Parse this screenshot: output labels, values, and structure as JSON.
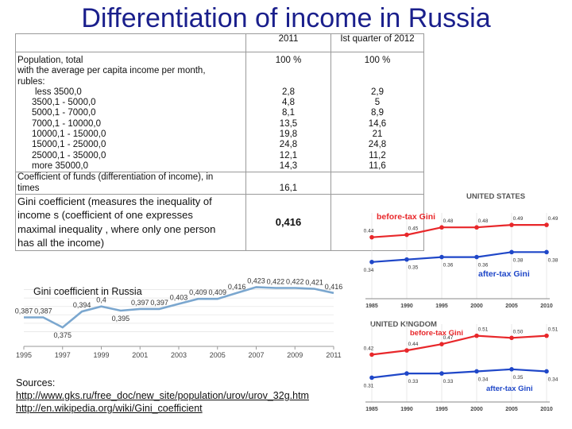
{
  "title": "Differentiation of  income in Russia",
  "table": {
    "col_2011": "2011",
    "col_2012": "Ist quarter of  2012",
    "population_label": "Population,  total",
    "population_2011": "100 %",
    "population_2012": "100 %",
    "subtitle_line1": " with the average per capita income per month,",
    "subtitle_line2": "rubles:",
    "brackets": [
      {
        "label": "less 3500,0",
        "v2011": "2,8",
        "v2012": "2,9"
      },
      {
        "label": "3500,1 - 5000,0",
        "v2011": "4,8",
        "v2012": "5"
      },
      {
        "label": "5000,1 - 7000,0",
        "v2011": "8,1",
        "v2012": "8,9"
      },
      {
        "label": "7000,1 - 10000,0",
        "v2011": "13,5",
        "v2012": "14,6"
      },
      {
        "label": "10000,1 - 15000,0",
        "v2011": "19,8",
        "v2012": "21"
      },
      {
        "label": "15000,1 - 25000,0",
        "v2011": "24,8",
        "v2012": "24,8"
      },
      {
        "label": "25000,1 - 35000,0",
        "v2011": "12,1",
        "v2012": "11,2"
      },
      {
        "label": "more 35000,0",
        "v2011": "14,3",
        "v2012": "11,6"
      }
    ],
    "coef_label_line1": "Coefficient of funds (differentiation of  income), in",
    "coef_label_line2": "times",
    "coef_2011": "16,1",
    "gini_label_line1": "Gini coefficient (measures the inequality  of",
    "gini_label_line2": "income s (coefficient of one expresses",
    "gini_label_line3": "maximal inequality , where only one person",
    "gini_label_line4": "has all the income)",
    "gini_2011": "0,416"
  },
  "sources": {
    "label": "Sources:",
    "link1": "http://www.gks.ru/free_doc/new_site/population/urov/urov_32g.htm",
    "link2": "http://en.wikipedia.org/wiki/Gini_coefficient"
  },
  "chart_data": [
    {
      "type": "line",
      "title": "Gini coefficient  in Russia",
      "x": [
        1995,
        1996,
        1997,
        1998,
        1999,
        2000,
        2001,
        2002,
        2003,
        2004,
        2005,
        2006,
        2007,
        2008,
        2009,
        2010,
        2011
      ],
      "values": [
        0.387,
        0.387,
        0.375,
        0.394,
        0.4,
        0.395,
        0.397,
        0.397,
        0.403,
        0.409,
        0.409,
        0.416,
        0.423,
        0.422,
        0.422,
        0.421,
        0.416
      ],
      "data_labels": [
        "0,387",
        "0,387",
        "0,375",
        "0,394",
        "0,4",
        "0,395",
        "0,397",
        "0,397",
        "0,403",
        "0,409",
        "0,409",
        "0,416",
        "0,423",
        "0,422",
        "0,422",
        "0,421",
        "0,416"
      ],
      "x_ticks": [
        "1995",
        "1997",
        "1999",
        "2001",
        "2003",
        "2005",
        "2007",
        "2009",
        "2011"
      ],
      "color": "#7ba7cf",
      "grid": true
    },
    {
      "type": "line",
      "title": "UNITED STATES",
      "x": [
        1985,
        1990,
        1995,
        2000,
        2005,
        2010
      ],
      "series": [
        {
          "name": "before-tax Gini",
          "color": "#e8272a",
          "values": [
            0.44,
            0.45,
            0.48,
            0.48,
            0.49,
            0.49
          ],
          "labels": [
            "0.44",
            "0.45",
            "0.48",
            "0.48",
            "0.49",
            "0.49"
          ]
        },
        {
          "name": "after-tax Gini",
          "color": "#1f47c8",
          "values": [
            0.34,
            0.35,
            0.36,
            0.36,
            0.38,
            0.38
          ],
          "labels": [
            "0.34",
            "0.35",
            "0.36",
            "0.36",
            "0.38",
            "0.38"
          ]
        }
      ],
      "x_ticks": [
        "1985",
        "1990",
        "1995",
        "2000",
        "2005",
        "2010"
      ],
      "grid": true
    },
    {
      "type": "line",
      "title": "UNITED KINGDOM",
      "x": [
        1985,
        1990,
        1995,
        2000,
        2005,
        2010
      ],
      "series": [
        {
          "name": "before-tax Gini",
          "color": "#e8272a",
          "values": [
            0.42,
            0.44,
            0.47,
            0.51,
            0.5,
            0.51
          ],
          "labels": [
            "0.42",
            "0.44",
            "0.47",
            "0.51",
            "0.50",
            "0.51"
          ]
        },
        {
          "name": "after-tax Gini",
          "color": "#1f47c8",
          "values": [
            0.31,
            0.33,
            0.33,
            0.34,
            0.35,
            0.34
          ],
          "labels": [
            "0.31",
            "0.33",
            "0.33",
            "0.34",
            "0.35",
            "0.34"
          ]
        }
      ],
      "x_ticks": [
        "1985",
        "1990",
        "1995",
        "2000",
        "2005",
        "2010"
      ],
      "grid": true
    }
  ]
}
